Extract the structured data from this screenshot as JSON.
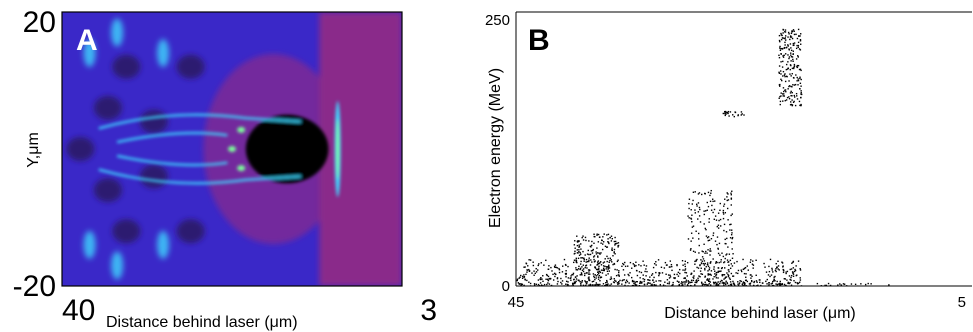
{
  "chart_data": [
    {
      "panel": "A",
      "type": "heatmap",
      "panel_label": "A",
      "xlabel": "Distance behind laser (μm)",
      "ylabel": "Y,μm",
      "x_ticks": [
        "40",
        "3"
      ],
      "y_ticks": [
        "20",
        "-20"
      ],
      "xlim": [
        40,
        3
      ],
      "ylim": [
        -20,
        20
      ],
      "colors": {
        "background": "#3a28c8",
        "magenta_region": "#8a2a8a",
        "cavity": "#000000",
        "filament": "#3fd8ff",
        "accent_green": "#7cff9a",
        "dark_purple": "#2a1a60"
      },
      "features": [
        {
          "name": "bubble cavity",
          "x_range": [
            20,
            11
          ],
          "y_range": [
            -5,
            5
          ]
        },
        {
          "name": "laser front filament",
          "x": 10,
          "y_range": [
            -7,
            7
          ]
        }
      ]
    },
    {
      "panel": "B",
      "type": "scatter",
      "panel_label": "B",
      "xlabel": "Distance behind laser (μm)",
      "ylabel": "Electron energy (MeV)",
      "x_ticks": [
        "45",
        "5"
      ],
      "y_ticks": [
        "250",
        "0"
      ],
      "xlim": [
        45,
        5
      ],
      "ylim": [
        0,
        250
      ],
      "marker_color": "#000000",
      "point_clusters": [
        {
          "x_range": [
            45,
            20
          ],
          "y_range": [
            0,
            25
          ],
          "density": "high"
        },
        {
          "x_range": [
            40,
            36
          ],
          "y_range": [
            0,
            48
          ],
          "density": "medium"
        },
        {
          "x_range": [
            30,
            26
          ],
          "y_range": [
            0,
            88
          ],
          "density": "medium"
        },
        {
          "x_range": [
            22,
            20
          ],
          "y_range": [
            165,
            235
          ],
          "density": "medium"
        },
        {
          "x_range": [
            27,
            25
          ],
          "y_range": [
            155,
            160
          ],
          "density": "low"
        },
        {
          "x_range": [
            19,
            12
          ],
          "y_range": [
            0,
            3
          ],
          "density": "low"
        }
      ]
    }
  ]
}
